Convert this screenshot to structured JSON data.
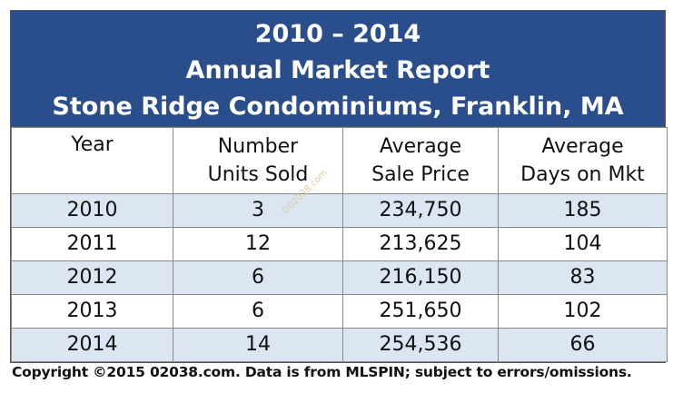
{
  "title": {
    "line1": "2010 – 2014",
    "line2": "Annual Market Report",
    "line3": "Stone Ridge Condominiums, Franklin, MA"
  },
  "headers": [
    {
      "line1": "Year",
      "line2": ""
    },
    {
      "line1": "Number",
      "line2": "Units Sold"
    },
    {
      "line1": "Average",
      "line2": "Sale Price"
    },
    {
      "line1": "Average",
      "line2": "Days on Mkt"
    }
  ],
  "rows": [
    {
      "year": "2010",
      "units": "3",
      "price": "234,750",
      "days": "185"
    },
    {
      "year": "2011",
      "units": "12",
      "price": "213,625",
      "days": "104"
    },
    {
      "year": "2012",
      "units": "6",
      "price": "216,150",
      "days": "83"
    },
    {
      "year": "2013",
      "units": "6",
      "price": "251,650",
      "days": "102"
    },
    {
      "year": "2014",
      "units": "14",
      "price": "254,536",
      "days": "66"
    }
  ],
  "watermark": "©02038.com",
  "footer": "Copyright ©2015 02038.com.  Data is from MLSPIN; subject to errors/omissions.",
  "colors": {
    "title_bg": "#2a4e8c",
    "stripe": "#dce6f2"
  }
}
